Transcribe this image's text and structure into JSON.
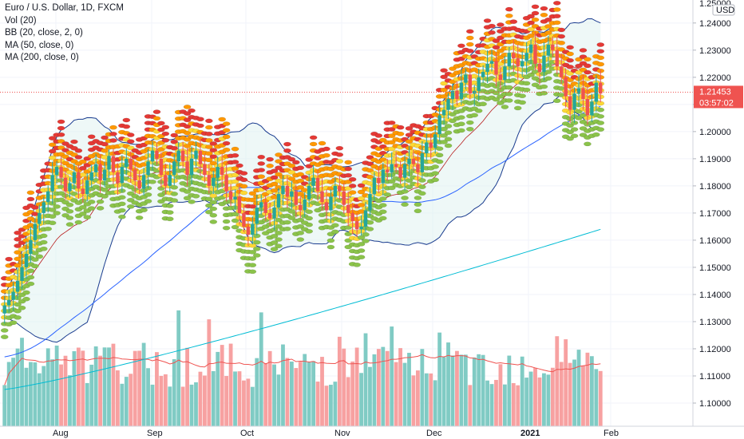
{
  "legend": {
    "symbol": "Euro / U.S. Dollar, 1D, FXCM",
    "vol": "Vol (20)",
    "bb": "BB (20, close, 2, 0)",
    "ma50": "MA (50, close, 0)",
    "ma200": "MA (200, close, 0)"
  },
  "price_axis": {
    "currency": "USD",
    "top_label": "1.25000",
    "last_price": "1.21453",
    "countdown": "03:57:02",
    "ticks": [
      "1.24000",
      "1.23000",
      "1.22000",
      "1.21000",
      "1.20000",
      "1.19000",
      "1.18000",
      "1.17000",
      "1.16000",
      "1.15000",
      "1.14000",
      "1.13000",
      "1.12000",
      "1.11000",
      "1.10000"
    ]
  },
  "time_axis": [
    "Aug",
    "Sep",
    "Oct",
    "Nov",
    "Dec",
    "2021",
    "Feb"
  ],
  "colors": {
    "up": "#26a69a",
    "down": "#ef5350",
    "vol_up": "#80cbc4",
    "vol_down": "#f7a1a1",
    "ma50": "#2962ff",
    "ma200": "#00bcd4",
    "bb_band": "#1a3c8f",
    "bb_mid": "#b71c1c",
    "cloud_red": "#e53935",
    "cloud_orange": "#ff9800",
    "cloud_yellow": "#fdd835",
    "cloud_green": "#8bc34a"
  },
  "chart_data": {
    "type": "candlestick",
    "title": "Euro / U.S. Dollar, 1D, FXCM",
    "ylim": [
      1.095,
      1.252
    ],
    "months": [
      "Aug",
      "Sep",
      "Oct",
      "Nov",
      "Dec",
      "2021",
      "Feb"
    ],
    "close_series": [
      1.136,
      1.138,
      1.141,
      1.145,
      1.15,
      1.155,
      1.16,
      1.166,
      1.17,
      1.174,
      1.178,
      1.184,
      1.187,
      1.183,
      1.178,
      1.181,
      1.185,
      1.179,
      1.177,
      1.182,
      1.185,
      1.188,
      1.182,
      1.186,
      1.191,
      1.185,
      1.181,
      1.187,
      1.19,
      1.186,
      1.182,
      1.179,
      1.184,
      1.189,
      1.193,
      1.19,
      1.184,
      1.18,
      1.184,
      1.189,
      1.193,
      1.189,
      1.184,
      1.19,
      1.193,
      1.188,
      1.184,
      1.18,
      1.183,
      1.187,
      1.184,
      1.178,
      1.175,
      1.176,
      1.17,
      1.165,
      1.162,
      1.166,
      1.172,
      1.174,
      1.17,
      1.168,
      1.172,
      1.177,
      1.18,
      1.176,
      1.178,
      1.173,
      1.171,
      1.175,
      1.18,
      1.183,
      1.178,
      1.174,
      1.171,
      1.176,
      1.18,
      1.178,
      1.173,
      1.17,
      1.167,
      1.164,
      1.165,
      1.171,
      1.177,
      1.183,
      1.181,
      1.186,
      1.185,
      1.188,
      1.187,
      1.183,
      1.188,
      1.19,
      1.188,
      1.185,
      1.192,
      1.196,
      1.194,
      1.199,
      1.206,
      1.208,
      1.212,
      1.215,
      1.212,
      1.218,
      1.221,
      1.214,
      1.215,
      1.22,
      1.222,
      1.225,
      1.226,
      1.221,
      1.219,
      1.224,
      1.229,
      1.227,
      1.224,
      1.226,
      1.229,
      1.232,
      1.225,
      1.222,
      1.228,
      1.232,
      1.23,
      1.224,
      1.22,
      1.213,
      1.208,
      1.214,
      1.216,
      1.212,
      1.206,
      1.211,
      1.218,
      1.214
    ],
    "series": [
      {
        "name": "BB (20, close, 2, 0)",
        "kind": "band"
      },
      {
        "name": "MA (50, close, 0)",
        "kind": "line"
      },
      {
        "name": "MA (200, close, 0)",
        "kind": "line"
      },
      {
        "name": "Vol (20)",
        "kind": "histogram"
      }
    ],
    "ma200_range": [
      1.105,
      1.164
    ]
  }
}
